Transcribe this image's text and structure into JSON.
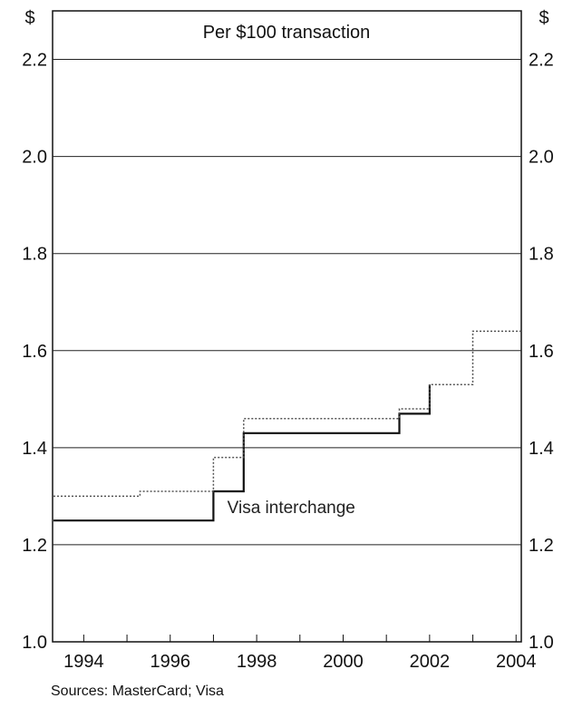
{
  "chart_data": {
    "type": "line",
    "title": "Per $100 transaction",
    "ylabel_left": "$",
    "ylabel_right": "$",
    "xlabel": "",
    "ylim": [
      1.0,
      2.3
    ],
    "xlim": [
      1993.8,
      2004.6
    ],
    "y_ticks": [
      "1.0",
      "1.2",
      "1.4",
      "1.6",
      "1.8",
      "2.0",
      "2.2"
    ],
    "x_ticks": [
      "1994",
      "1996",
      "1998",
      "2000",
      "2002",
      "2004"
    ],
    "grid": true,
    "series": [
      {
        "name": "Visa interchange",
        "style": "solid",
        "points": [
          [
            1993.8,
            1.25
          ],
          [
            1997.5,
            1.25
          ],
          [
            1997.5,
            1.31
          ],
          [
            1998.2,
            1.31
          ],
          [
            1998.2,
            1.43
          ],
          [
            2001.8,
            1.43
          ],
          [
            2001.8,
            1.47
          ],
          [
            2002.5,
            1.47
          ],
          [
            2002.5,
            1.53
          ]
        ]
      },
      {
        "name": "",
        "style": "dotted",
        "points": [
          [
            1993.8,
            1.3
          ],
          [
            1995.8,
            1.3
          ],
          [
            1995.8,
            1.31
          ],
          [
            1996.8,
            1.31
          ],
          [
            1997.5,
            1.31
          ],
          [
            1997.5,
            1.38
          ],
          [
            1998.2,
            1.38
          ],
          [
            1998.2,
            1.46
          ],
          [
            2001.8,
            1.46
          ],
          [
            2001.8,
            1.48
          ],
          [
            2002.5,
            1.48
          ],
          [
            2002.5,
            1.53
          ],
          [
            2003.5,
            1.53
          ],
          [
            2003.5,
            1.64
          ],
          [
            2004.6,
            1.64
          ]
        ]
      }
    ],
    "annotations": [
      {
        "text": "Visa interchange",
        "x": 1999.3,
        "y": 1.265
      }
    ],
    "source": "Sources: MasterCard; Visa"
  }
}
